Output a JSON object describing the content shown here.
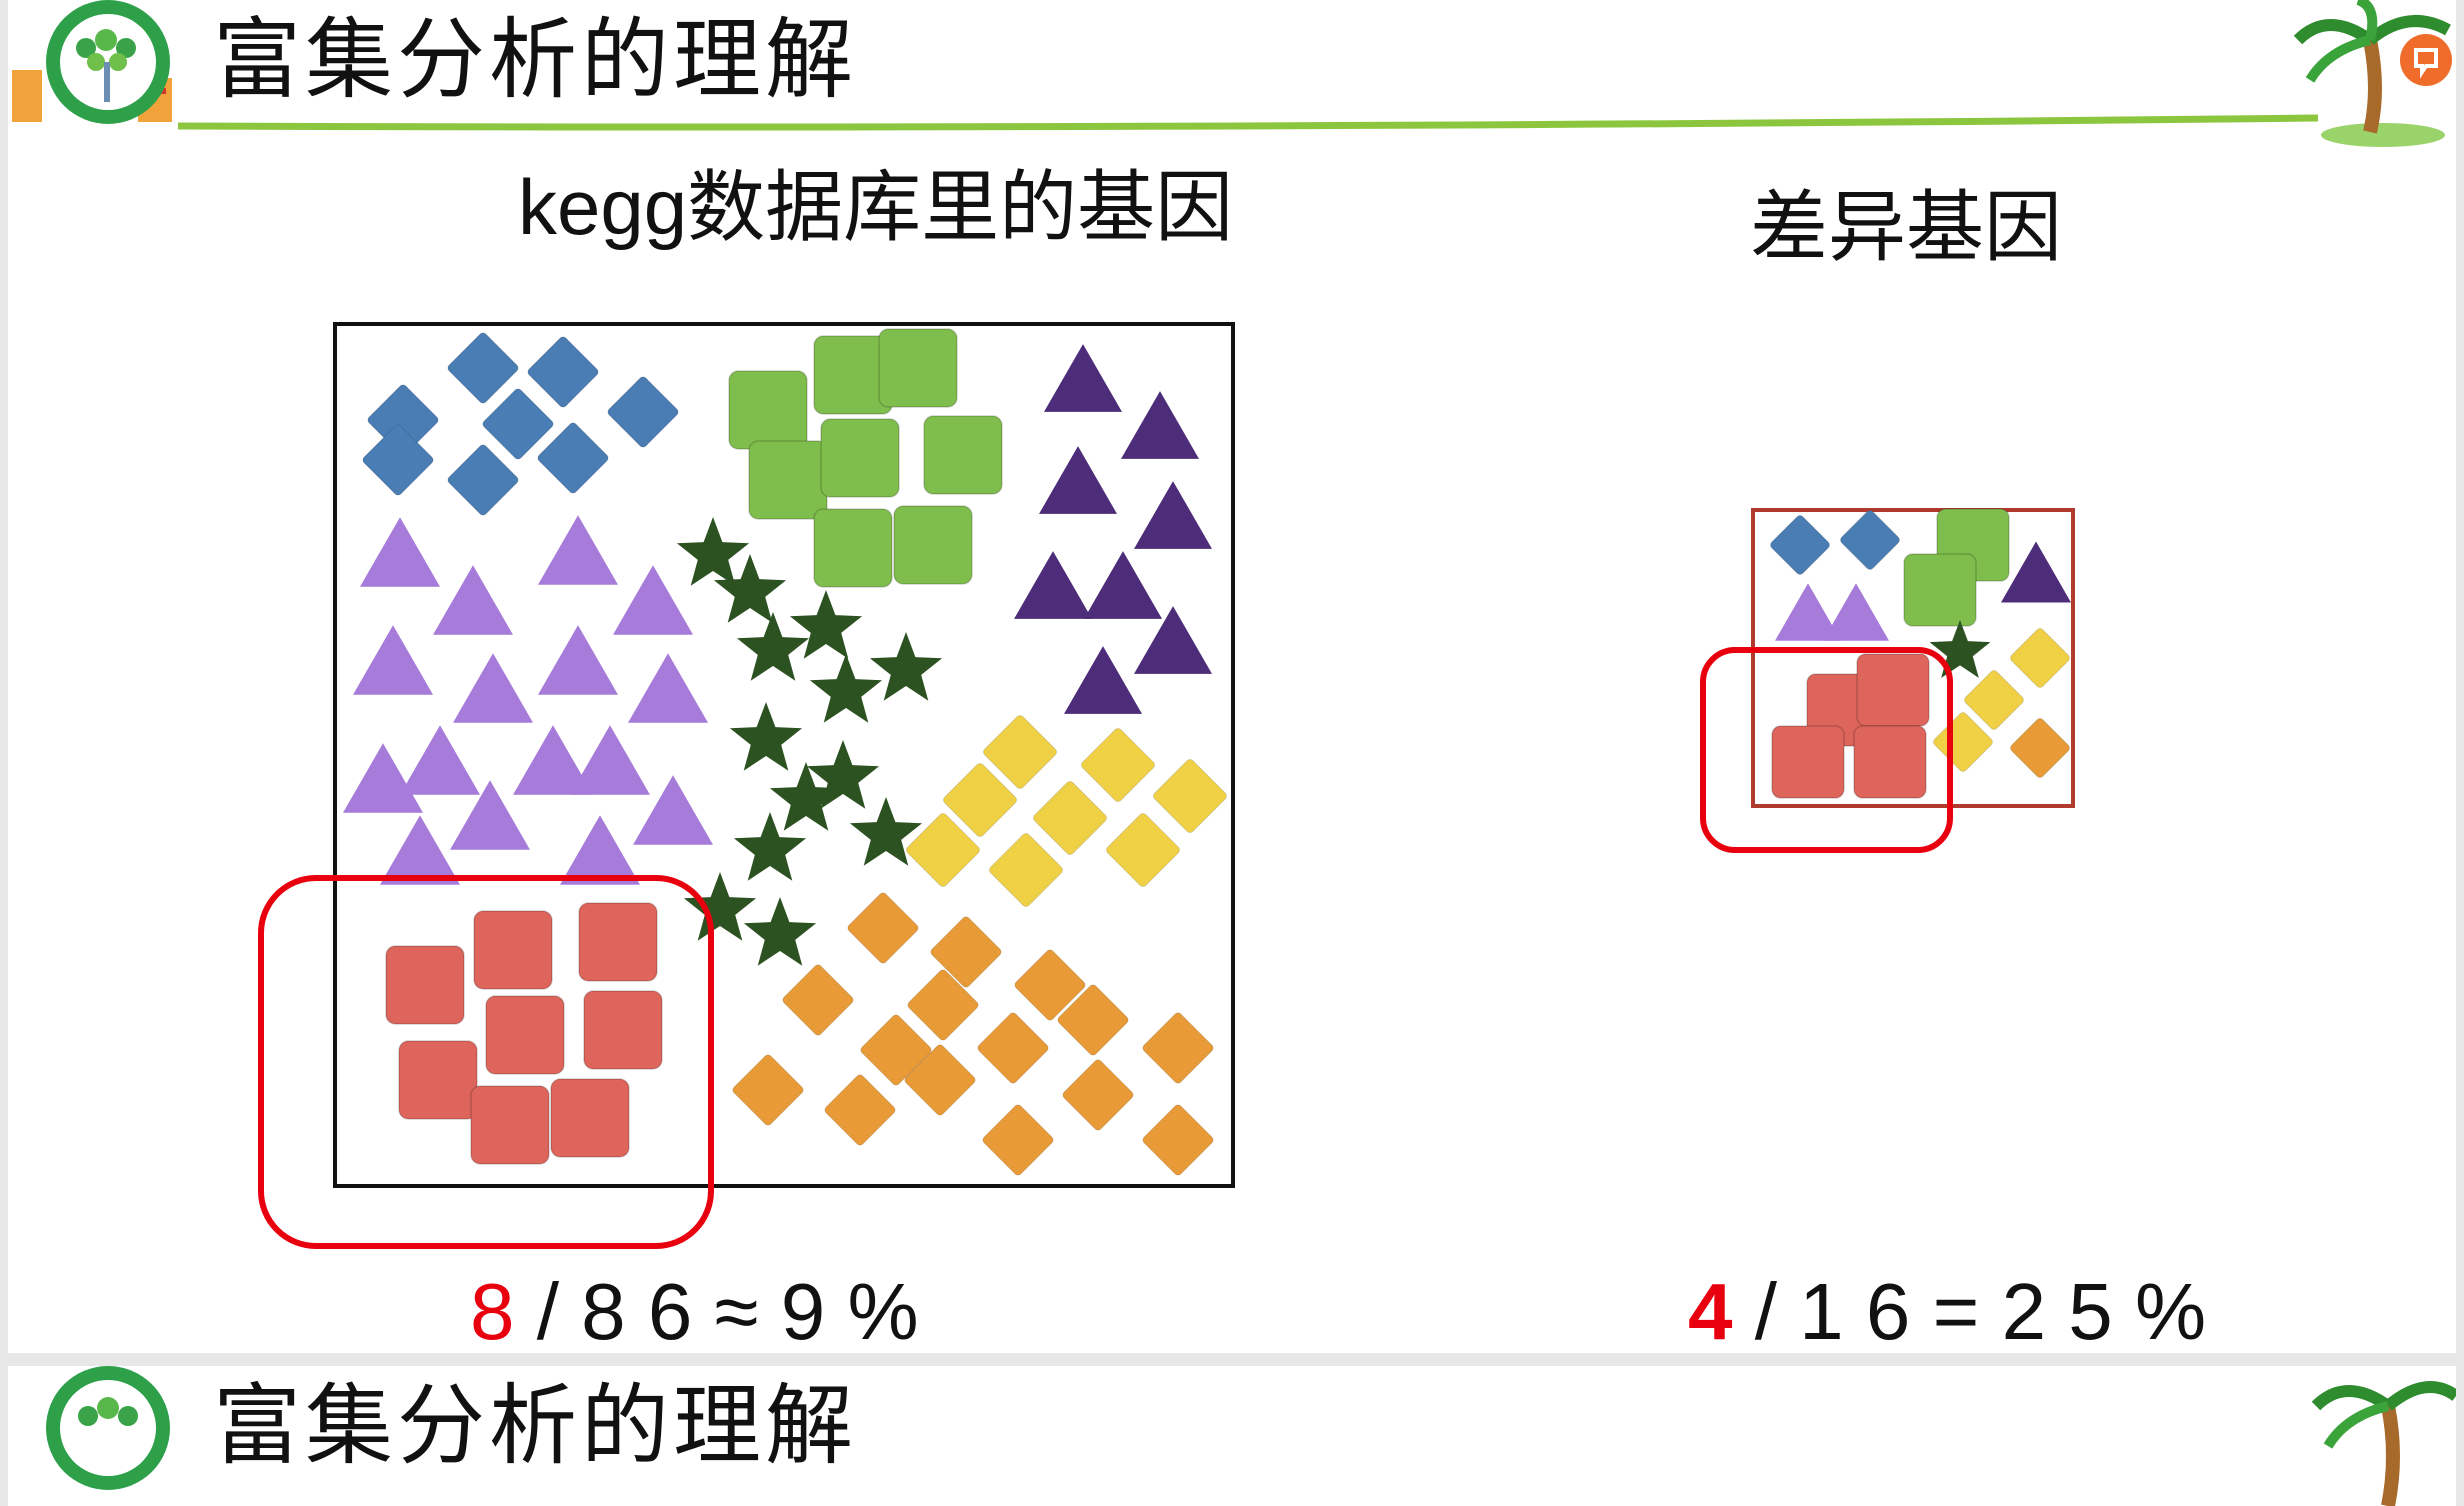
{
  "slide": {
    "title": "富集分析的理解"
  },
  "diagram": {
    "left_heading": "kegg数据库里的基因",
    "right_heading": "差异基因",
    "left_formula": {
      "highlight": "8",
      "rest": " / 8 6 ≈ 9 %"
    },
    "right_formula": {
      "highlight": "4",
      "rest": " / 1 6 = 2 5 %"
    },
    "colors": {
      "blue": "#4a7db3",
      "green": "#7fbd4c",
      "purple_dark": "#4d2d7a",
      "purple_light": "#a77bd9",
      "star_green": "#2c5222",
      "yellow": "#f0d146",
      "orange": "#e89a36",
      "red_square": "#dd655c",
      "highlight_red": "#e8000e",
      "title_line": "#8cc63f"
    }
  },
  "slide2": {
    "title": "富集分析的理解"
  }
}
